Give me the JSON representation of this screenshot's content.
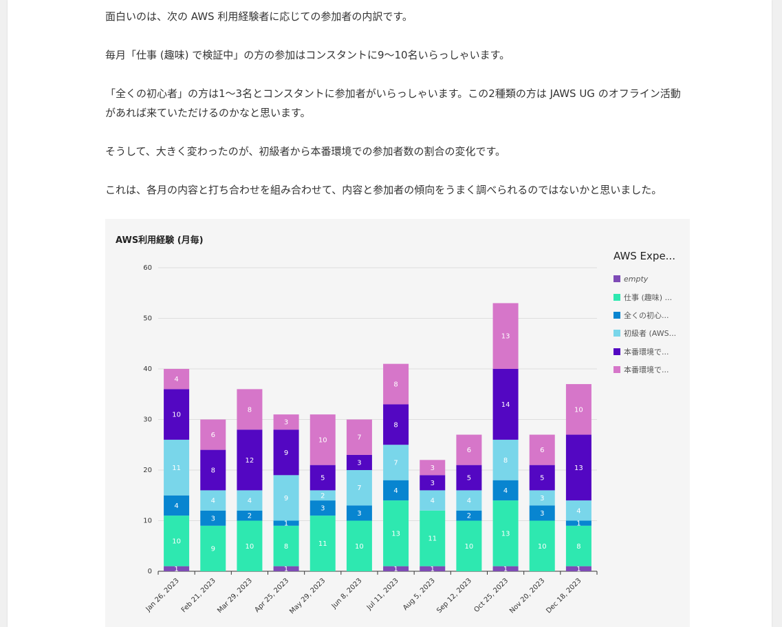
{
  "article": {
    "paragraphs": [
      "面白いのは、次の AWS 利用経験者に応じての参加者の内訳です。",
      "毎月「仕事 (趣味) で検証中」の方の参加はコンスタントに9〜10名いらっしゃいます。",
      "「全くの初心者」の方は1〜3名とコンスタントに参加者がいらっしゃいます。この2種類の方は JAWS UG のオフライン活動があれば来ていただけるのかなと思います。",
      "そうして、大きく変わったのが、初級者から本番環境での参加者数の割合の変化です。",
      "これは、各月の内容と打ち合わせを組み合わせて、内容と参加者の傾向をうまく調べられるのではないかと思いました。"
    ]
  },
  "chart_data": {
    "type": "bar",
    "stacked": true,
    "title": "AWS利用経験 (月毎)",
    "legend_title": "AWS Expe...",
    "categories": [
      "Jan 26, 2023",
      "Feb 21, 2023",
      "Mar 29, 2023",
      "Apr 25, 2023",
      "May 29, 2023",
      "Jun 8, 2023",
      "Jul 11, 2023",
      "Aug 5, 2023",
      "Sep 12, 2023",
      "Oct 25, 2023",
      "Nov 20, 2023",
      "Dec 18, 2023"
    ],
    "ylim": [
      0,
      60
    ],
    "yticks": [
      0,
      10,
      20,
      30,
      40,
      50,
      60
    ],
    "grid": true,
    "legend_position": "right",
    "series": [
      {
        "name": "empty",
        "legend_label": "empty",
        "italic": true,
        "color": "#7e4bb6",
        "values": [
          1,
          0,
          0,
          1,
          0,
          0,
          1,
          1,
          0,
          1,
          0,
          1
        ]
      },
      {
        "name": "仕事 (趣味) で検証中",
        "legend_label": "仕事 (趣味) ...",
        "color": "#2ee8b0",
        "values": [
          10,
          9,
          10,
          8,
          11,
          10,
          13,
          11,
          10,
          13,
          10,
          8
        ]
      },
      {
        "name": "全くの初心者",
        "legend_label": "全くの初心...",
        "color": "#0885d0",
        "values": [
          4,
          3,
          2,
          1,
          3,
          3,
          4,
          0,
          2,
          4,
          3,
          1
        ]
      },
      {
        "name": "初級者 (AWS...)",
        "legend_label": "初級者 (AWS...",
        "color": "#79d6ea",
        "values": [
          11,
          4,
          4,
          9,
          2,
          7,
          7,
          4,
          4,
          8,
          3,
          4
        ]
      },
      {
        "name": "本番環境で...",
        "legend_label": "本番環境で...",
        "color": "#5307c2",
        "values": [
          10,
          8,
          12,
          9,
          5,
          3,
          8,
          3,
          5,
          14,
          5,
          13
        ]
      },
      {
        "name": "本番環境で...",
        "legend_label": "本番環境で...",
        "color": "#d676c9",
        "values": [
          4,
          6,
          8,
          3,
          10,
          7,
          8,
          3,
          6,
          13,
          6,
          10
        ]
      }
    ]
  }
}
